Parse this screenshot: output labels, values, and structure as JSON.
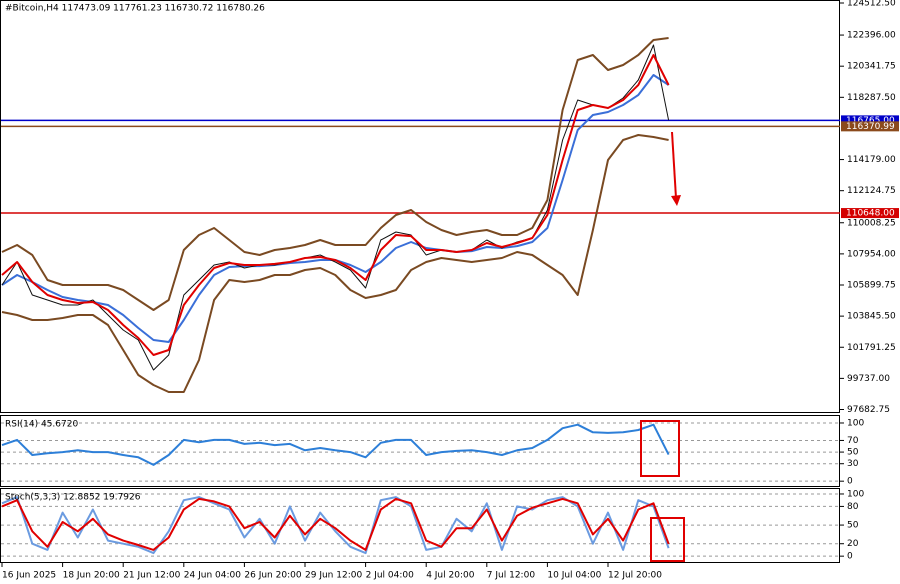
{
  "chart_data": [
    {
      "type": "line",
      "title": "#Bitcoin,H4  117473.09 117761.23 116730.72 116780.26",
      "categories": [
        "16 Jun 2025",
        null,
        null,
        null,
        "18 Jun 20:00",
        null,
        null,
        null,
        "21 Jun 12:00",
        null,
        null,
        null,
        "24 Jun 04:00",
        null,
        null,
        null,
        "26 Jun 20:00",
        null,
        null,
        null,
        "29 Jun 12:00",
        null,
        null,
        null,
        "2 Jul 04:00",
        null,
        null,
        null,
        "4 Jul 20:00",
        null,
        null,
        null,
        "7 Jul 12:00",
        null,
        null,
        null,
        "10 Jul 04:00",
        null,
        null,
        null,
        "12 Jul 20:00",
        null,
        null,
        null,
        null
      ],
      "ylim": [
        97452,
        124710
      ],
      "yticks": [
        {
          "value": 124512.5,
          "label": "124512.50"
        },
        {
          "value": 122396,
          "label": "122396.00"
        },
        120341.75,
        {
          "value": 118287.5,
          "label": "118287.50"
        },
        {
          "value": 114179,
          "label": "114179.00"
        },
        112124.75,
        110008.25,
        {
          "value": 107954,
          "label": "107954.00"
        },
        105899.75,
        {
          "value": 103845.5,
          "label": "103845.50"
        },
        101791.25,
        {
          "value": 99737,
          "label": "99737.00"
        },
        97682.75
      ],
      "grid": false,
      "levels": [
        {
          "value": 116765,
          "label": "116765.00",
          "color": "#0000c8"
        },
        {
          "value": 116370.99,
          "label": "116370.99",
          "color": "#8b4a1c"
        },
        {
          "value": 110648,
          "label": "110648.00",
          "color": "#d40000"
        }
      ],
      "series": [
        {
          "color": "#7a4a22",
          "values": [
            108080,
            108540,
            107880,
            106230,
            105900,
            105900,
            105900,
            105900,
            105570,
            104910,
            104250,
            104910,
            108210,
            109200,
            109660,
            108870,
            108080,
            107880,
            108210,
            108340,
            108540,
            108870,
            108540,
            108540,
            108540,
            109660,
            110520,
            110850,
            110060,
            109530,
            109200,
            109400,
            109530,
            109200,
            109200,
            109660,
            111510,
            117450,
            120750,
            121080,
            120090,
            120420,
            121080,
            122070,
            122200
          ]
        },
        {
          "color": "#7a4a22",
          "values": [
            104120,
            103920,
            103590,
            103590,
            103720,
            103920,
            103920,
            103260,
            101610,
            99960,
            99300,
            98840,
            98840,
            100950,
            104910,
            106230,
            106100,
            106230,
            106560,
            106560,
            106890,
            107020,
            106560,
            105570,
            105040,
            105240,
            105570,
            106890,
            107420,
            107680,
            107550,
            107420,
            107550,
            107680,
            108080,
            107880,
            107220,
            106560,
            105240,
            109530,
            114150,
            115470,
            115800,
            115670,
            115470
          ]
        },
        {
          "color": "#3a6fd8",
          "values": [
            105900,
            106560,
            106100,
            105570,
            105110,
            104910,
            104780,
            104580,
            103920,
            103060,
            102270,
            102140,
            103590,
            105240,
            106560,
            107090,
            107150,
            107150,
            107220,
            107350,
            107420,
            107550,
            107550,
            107220,
            106760,
            107420,
            108340,
            108740,
            108340,
            108210,
            108080,
            108140,
            108410,
            108340,
            108470,
            108740,
            109660,
            112830,
            116130,
            117120,
            117320,
            117780,
            118440,
            119760,
            119100
          ]
        },
        {
          "color": "#111111",
          "values": [
            105900,
            107420,
            105240,
            104910,
            104580,
            104580,
            104910,
            103920,
            102930,
            102270,
            100290,
            101280,
            105240,
            106230,
            107220,
            107420,
            107020,
            107220,
            107220,
            107420,
            107680,
            107880,
            107420,
            106890,
            105700,
            108870,
            109400,
            109200,
            107880,
            108210,
            108080,
            108210,
            108870,
            108340,
            108740,
            109000,
            110850,
            115470,
            118110,
            117780,
            117580,
            118240,
            119430,
            121740,
            116780
          ]
        },
        {
          "color": "#e00000",
          "values": [
            106560,
            107420,
            106100,
            105240,
            104910,
            104710,
            104780,
            104250,
            103260,
            102400,
            101280,
            101610,
            104580,
            105900,
            107020,
            107350,
            107220,
            107220,
            107290,
            107420,
            107680,
            107750,
            107550,
            107020,
            106230,
            108210,
            109200,
            109130,
            108210,
            108210,
            108080,
            108210,
            108670,
            108410,
            108670,
            109000,
            110520,
            114150,
            117450,
            117780,
            117580,
            118110,
            119100,
            121080,
            119100
          ]
        }
      ]
    },
    {
      "type": "line",
      "title": "RSI(14) 45.6720",
      "ylim": [
        -10,
        112
      ],
      "yticks": [
        0,
        30,
        50,
        70,
        100
      ],
      "grid": true,
      "series": [
        {
          "color": "#2d7fd8",
          "values": [
            62,
            71,
            45,
            48,
            50,
            53,
            50,
            50,
            45,
            41,
            28,
            45,
            71,
            67,
            71,
            71,
            64,
            66,
            62,
            64,
            53,
            57,
            53,
            50,
            41,
            66,
            71,
            71,
            45,
            50,
            52,
            53,
            50,
            45,
            53,
            57,
            71,
            91,
            97,
            84,
            83,
            84,
            88,
            97,
            45.672
          ]
        }
      ]
    },
    {
      "type": "line",
      "title": "Stoch(5,3,3) 12.8852 19.7926",
      "ylim": [
        -11,
        108
      ],
      "yticks": [
        0,
        20,
        50,
        80,
        100
      ],
      "grid": true,
      "series": [
        {
          "color": "#6b9be0",
          "values": [
            85,
            95,
            20,
            10,
            70,
            30,
            75,
            25,
            20,
            15,
            5,
            40,
            90,
            95,
            85,
            75,
            30,
            60,
            20,
            80,
            25,
            70,
            40,
            15,
            5,
            90,
            95,
            80,
            10,
            15,
            60,
            40,
            85,
            10,
            80,
            75,
            90,
            95,
            80,
            20,
            70,
            10,
            90,
            80,
            12.8852
          ]
        },
        {
          "color": "#e00000",
          "values": [
            80,
            90,
            40,
            15,
            55,
            40,
            60,
            35,
            25,
            18,
            10,
            30,
            75,
            92,
            88,
            80,
            45,
            55,
            30,
            65,
            35,
            60,
            45,
            25,
            10,
            75,
            92,
            85,
            25,
            15,
            45,
            45,
            75,
            25,
            65,
            78,
            85,
            92,
            85,
            35,
            60,
            25,
            75,
            85,
            19.7926
          ]
        }
      ]
    }
  ]
}
